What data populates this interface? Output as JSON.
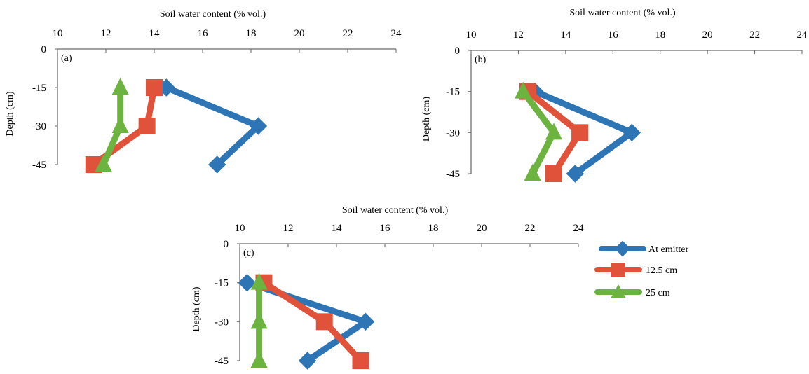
{
  "legend": {
    "entries": [
      {
        "label": "At emitter",
        "color": "#2e75b6",
        "marker": "diamond"
      },
      {
        "label": "12.5 cm",
        "color": "#e0533a",
        "marker": "square"
      },
      {
        "label": "25 cm",
        "color": "#6db33f",
        "marker": "triangle"
      }
    ]
  },
  "chart_data": [
    {
      "type": "line",
      "panel_label": "(a)",
      "xlabel": "Soil water content (% vol.)",
      "ylabel": "Depth (cm)",
      "xlim": [
        10,
        24
      ],
      "ylim": [
        -45,
        0
      ],
      "x_ticks": [
        "10",
        "12",
        "14",
        "16",
        "18",
        "20",
        "22",
        "24"
      ],
      "y_ticks": [
        "0",
        "-15",
        "-30",
        "-45"
      ],
      "x_axis_position": "top",
      "grid": false,
      "series": [
        {
          "name": "At emitter",
          "color": "#2e75b6",
          "marker": "diamond",
          "points": [
            {
              "x": 14.5,
              "y": -15
            },
            {
              "x": 18.3,
              "y": -30
            },
            {
              "x": 16.6,
              "y": -45
            }
          ]
        },
        {
          "name": "12.5 cm",
          "color": "#e0533a",
          "marker": "square",
          "points": [
            {
              "x": 14.0,
              "y": -15
            },
            {
              "x": 13.7,
              "y": -30
            },
            {
              "x": 11.5,
              "y": -45
            }
          ]
        },
        {
          "name": "25 cm",
          "color": "#6db33f",
          "marker": "triangle",
          "points": [
            {
              "x": 12.6,
              "y": -15
            },
            {
              "x": 12.6,
              "y": -30
            },
            {
              "x": 11.9,
              "y": -45
            }
          ]
        }
      ]
    },
    {
      "type": "line",
      "panel_label": "(b)",
      "xlabel": "Soil water content (% vol.)",
      "ylabel": "Depth (cm)",
      "xlim": [
        10,
        24
      ],
      "ylim": [
        -45,
        0
      ],
      "x_ticks": [
        "10",
        "12",
        "14",
        "16",
        "18",
        "20",
        "22",
        "24"
      ],
      "y_ticks": [
        "0",
        "-15",
        "-30",
        "-45"
      ],
      "x_axis_position": "top",
      "grid": false,
      "series": [
        {
          "name": "At emitter",
          "color": "#2e75b6",
          "marker": "diamond",
          "points": [
            {
              "x": 12.7,
              "y": -15
            },
            {
              "x": 16.8,
              "y": -30
            },
            {
              "x": 14.4,
              "y": -45
            }
          ]
        },
        {
          "name": "12.5 cm",
          "color": "#e0533a",
          "marker": "square",
          "points": [
            {
              "x": 12.4,
              "y": -15
            },
            {
              "x": 14.6,
              "y": -30
            },
            {
              "x": 13.5,
              "y": -45
            }
          ]
        },
        {
          "name": "25 cm",
          "color": "#6db33f",
          "marker": "triangle",
          "points": [
            {
              "x": 12.2,
              "y": -15
            },
            {
              "x": 13.5,
              "y": -30
            },
            {
              "x": 12.6,
              "y": -45
            }
          ]
        }
      ]
    },
    {
      "type": "line",
      "panel_label": "(c)",
      "xlabel": "Soil water content (% vol.)",
      "ylabel": "Depth (cm)",
      "xlim": [
        10,
        24
      ],
      "ylim": [
        -45,
        0
      ],
      "x_ticks": [
        "10",
        "12",
        "14",
        "16",
        "18",
        "20",
        "22",
        "24"
      ],
      "y_ticks": [
        "0",
        "-15",
        "-30",
        "-45"
      ],
      "x_axis_position": "top",
      "grid": false,
      "series": [
        {
          "name": "At emitter",
          "color": "#2e75b6",
          "marker": "diamond",
          "points": [
            {
              "x": 10.3,
              "y": -15
            },
            {
              "x": 15.2,
              "y": -30
            },
            {
              "x": 12.8,
              "y": -45
            }
          ]
        },
        {
          "name": "12.5 cm",
          "color": "#e0533a",
          "marker": "square",
          "points": [
            {
              "x": 11.0,
              "y": -15
            },
            {
              "x": 13.5,
              "y": -30
            },
            {
              "x": 15.0,
              "y": -45
            }
          ]
        },
        {
          "name": "25 cm",
          "color": "#6db33f",
          "marker": "triangle",
          "points": [
            {
              "x": 10.8,
              "y": -15
            },
            {
              "x": 10.8,
              "y": -30
            },
            {
              "x": 10.8,
              "y": -45
            }
          ]
        }
      ]
    }
  ]
}
